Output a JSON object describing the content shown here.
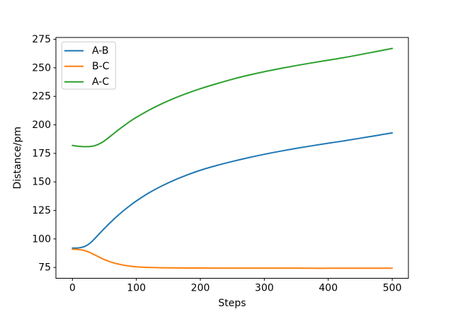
{
  "chart_data": {
    "type": "line",
    "title": "",
    "xlabel": "Steps",
    "ylabel": "Distance/pm",
    "xlim": [
      -25.8,
      525.3
    ],
    "ylim": [
      65.5,
      276.6
    ],
    "x_ticks": [
      0,
      100,
      200,
      300,
      400,
      500
    ],
    "y_ticks": [
      75,
      100,
      125,
      150,
      175,
      200,
      225,
      250,
      275
    ],
    "grid": false,
    "legend": {
      "position": "upper-left",
      "border_color": "#cccccc",
      "background": "#ffffff"
    },
    "axis_color": "#000000",
    "text_color": "#000000",
    "x": [
      0,
      5,
      10,
      15,
      20,
      25,
      30,
      35,
      40,
      45,
      50,
      60,
      70,
      80,
      90,
      100,
      120,
      140,
      160,
      180,
      200,
      225,
      250,
      275,
      300,
      325,
      350,
      375,
      400,
      425,
      450,
      475,
      500
    ],
    "series": [
      {
        "name": "A-B",
        "color": "#1f77b4",
        "values": [
          92,
          92,
          92.2,
          92.7,
          93.6,
          95.2,
          97.5,
          100.3,
          103.3,
          106.3,
          109.2,
          114.8,
          120,
          124.8,
          129.2,
          133.3,
          140.5,
          146.5,
          151.7,
          156.2,
          160.2,
          164.3,
          167.9,
          171.2,
          174.2,
          176.9,
          179.4,
          181.7,
          183.9,
          186,
          188.3,
          190.6,
          193
        ]
      },
      {
        "name": "B-C",
        "color": "#ff7f0e",
        "values": [
          91,
          90.9,
          90.7,
          90.3,
          89.6,
          88.6,
          87.4,
          86,
          84.6,
          83.2,
          81.9,
          79.8,
          78.2,
          77,
          76.2,
          75.6,
          75,
          74.7,
          74.6,
          74.5,
          74.5,
          74.4,
          74.4,
          74.4,
          74.4,
          74.4,
          74.4,
          74.3,
          74.3,
          74.3,
          74.3,
          74.3,
          74.3
        ]
      },
      {
        "name": "A-C",
        "color": "#2ca02c",
        "values": [
          182,
          181.5,
          181.2,
          181,
          180.9,
          180.9,
          181.2,
          181.8,
          182.8,
          184.2,
          186,
          190.3,
          194.8,
          199,
          203,
          206.6,
          213,
          218.6,
          223.5,
          227.8,
          231.7,
          236,
          240,
          243.5,
          246.6,
          249.4,
          252,
          254.4,
          256.7,
          259,
          261.6,
          264.3,
          267
        ]
      }
    ]
  }
}
